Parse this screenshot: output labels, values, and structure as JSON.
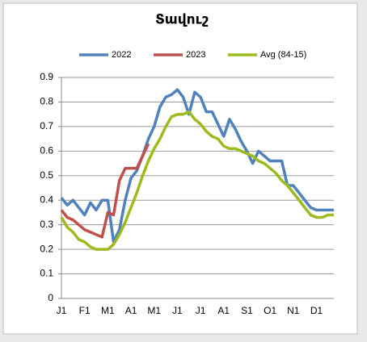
{
  "chart_data": {
    "type": "line",
    "title": "Տավուշ",
    "categories": [
      "J1",
      null,
      null,
      null,
      "F1",
      null,
      null,
      null,
      "M1",
      null,
      null,
      null,
      "A1",
      null,
      null,
      null,
      "M1",
      null,
      null,
      null,
      "J1",
      null,
      null,
      null,
      "J1",
      null,
      null,
      null,
      "A1",
      null,
      null,
      null,
      "S1",
      null,
      null,
      null,
      "O1",
      null,
      null,
      null,
      "N1",
      null,
      null,
      null,
      "D1",
      null,
      null,
      null
    ],
    "series": [
      {
        "name": "2022",
        "color": "#4f81bd",
        "values": [
          0.41,
          0.38,
          0.4,
          0.37,
          0.34,
          0.39,
          0.36,
          0.4,
          0.4,
          0.23,
          0.28,
          0.4,
          0.49,
          0.52,
          0.58,
          0.65,
          0.7,
          0.78,
          0.82,
          0.83,
          0.85,
          0.82,
          0.75,
          0.84,
          0.82,
          0.76,
          0.76,
          0.71,
          0.66,
          0.73,
          0.69,
          0.64,
          0.6,
          0.55,
          0.6,
          0.58,
          0.56,
          0.56,
          0.56,
          0.46,
          0.46,
          0.43,
          0.4,
          0.37,
          0.36,
          0.36,
          0.36,
          0.36
        ]
      },
      {
        "name": "2023",
        "color": "#c0504d",
        "values": [
          0.36,
          0.33,
          0.32,
          0.3,
          0.28,
          0.27,
          0.26,
          0.25,
          0.35,
          0.34,
          0.48,
          0.53,
          0.53,
          0.53,
          0.58,
          0.63,
          null,
          null,
          null,
          null,
          null,
          null,
          null,
          null,
          null,
          null,
          null,
          null,
          null,
          null,
          null,
          null,
          null,
          null,
          null,
          null,
          null,
          null,
          null,
          null,
          null,
          null,
          null,
          null,
          null,
          null,
          null,
          null
        ]
      },
      {
        "name": "Avg (84-15)",
        "color": "#9bbb1f",
        "values": [
          0.33,
          0.29,
          0.27,
          0.24,
          0.23,
          0.21,
          0.2,
          0.2,
          0.2,
          0.22,
          0.26,
          0.31,
          0.37,
          0.43,
          0.5,
          0.56,
          0.61,
          0.65,
          0.7,
          0.74,
          0.75,
          0.75,
          0.76,
          0.73,
          0.71,
          0.68,
          0.66,
          0.65,
          0.62,
          0.61,
          0.61,
          0.6,
          0.59,
          0.58,
          0.56,
          0.55,
          0.53,
          0.51,
          0.48,
          0.46,
          0.43,
          0.4,
          0.37,
          0.34,
          0.33,
          0.33,
          0.34,
          0.34
        ]
      }
    ],
    "ylim": [
      0,
      0.9
    ],
    "yticks": [
      0,
      0.1,
      0.2,
      0.3,
      0.4,
      0.5,
      0.6,
      0.7,
      0.8,
      0.9
    ],
    "grid": true,
    "legend": "top"
  }
}
